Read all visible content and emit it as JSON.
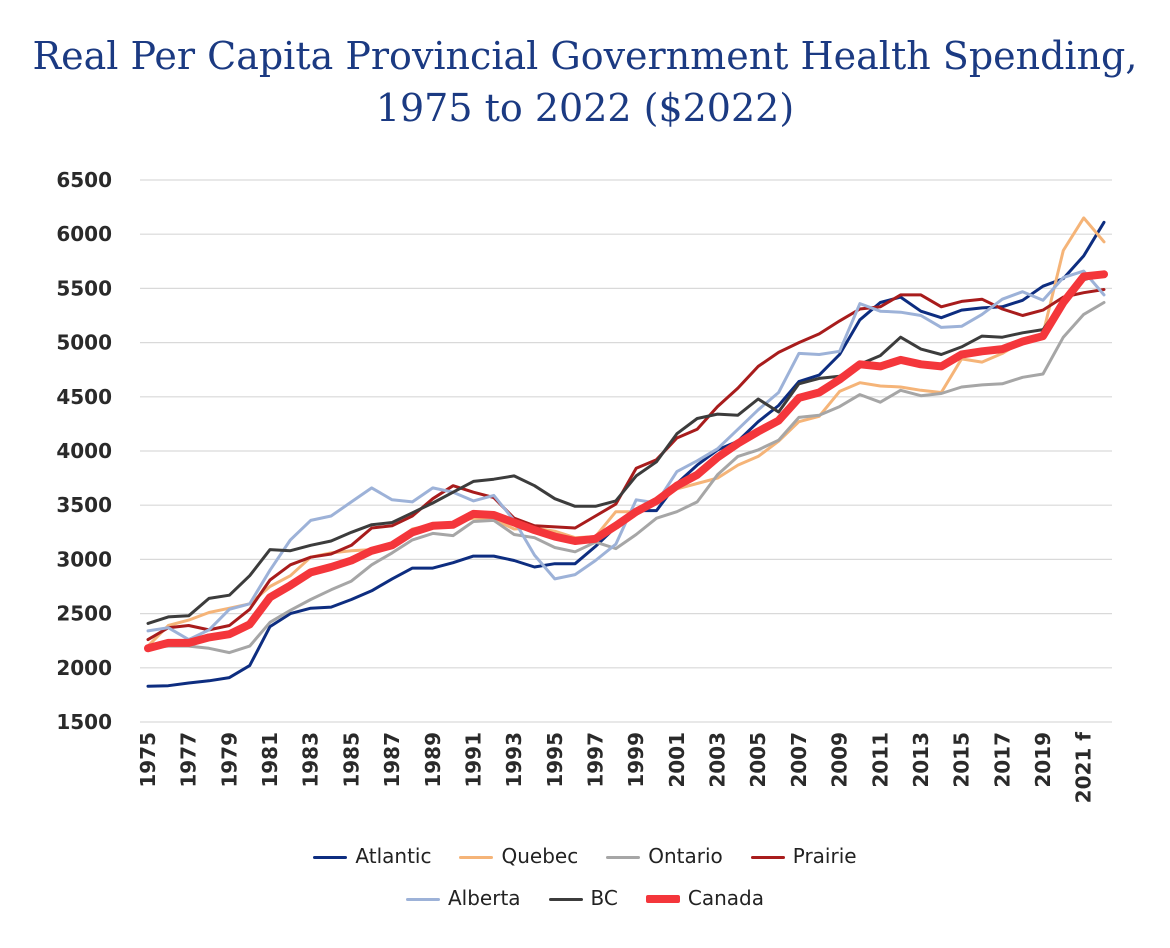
{
  "title_line1": "Real Per Capita Provincial Government Health Spending,",
  "title_line2": "1975 to 2022 ($2022)",
  "chart_data": {
    "type": "line",
    "title": "Real Per Capita Provincial Government Health Spending, 1975 to 2022 ($2022)",
    "xlabel": "",
    "ylabel": "",
    "ylim": [
      1500,
      6500
    ],
    "yticks": [
      1500,
      2000,
      2500,
      3000,
      3500,
      4000,
      4500,
      5000,
      5500,
      6000,
      6500
    ],
    "xticks": [
      "1975",
      "1977",
      "1979",
      "1981",
      "1983",
      "1985",
      "1987",
      "1989",
      "1991",
      "1993",
      "1995",
      "1997",
      "1999",
      "2001",
      "2003",
      "2005",
      "2007",
      "2009",
      "2011",
      "2013",
      "2015",
      "2017",
      "2019",
      "2021 f"
    ],
    "x": [
      "1975",
      "1976",
      "1977",
      "1978",
      "1979",
      "1980",
      "1981",
      "1982",
      "1983",
      "1984",
      "1985",
      "1986",
      "1987",
      "1988",
      "1989",
      "1990",
      "1991",
      "1992",
      "1993",
      "1994",
      "1995",
      "1996",
      "1997",
      "1998",
      "1999",
      "2000",
      "2001",
      "2002",
      "2003",
      "2004",
      "2005",
      "2006",
      "2007",
      "2008",
      "2009",
      "2010",
      "2011",
      "2012",
      "2013",
      "2014",
      "2015",
      "2016",
      "2017",
      "2018",
      "2019",
      "2020",
      "2021 f",
      "2022 f"
    ],
    "grid": true,
    "legend_position": "bottom",
    "series": [
      {
        "name": "Atlantic",
        "color": "#0d2d80",
        "width": 3,
        "values": [
          1830,
          1835,
          1860,
          1880,
          1910,
          2020,
          2380,
          2500,
          2550,
          2560,
          2630,
          2710,
          2820,
          2920,
          2920,
          2970,
          3030,
          3030,
          2990,
          2930,
          2960,
          2960,
          3120,
          3300,
          3450,
          3450,
          3700,
          3870,
          4010,
          4090,
          4270,
          4420,
          4640,
          4700,
          4890,
          5210,
          5370,
          5420,
          5290,
          5230,
          5300,
          5320,
          5330,
          5390,
          5520,
          5590,
          5800,
          6110
        ]
      },
      {
        "name": "Quebec",
        "color": "#f5b478",
        "width": 3,
        "values": [
          2200,
          2390,
          2440,
          2510,
          2550,
          2590,
          2750,
          2850,
          3020,
          3060,
          3080,
          3090,
          3130,
          3280,
          3320,
          3340,
          3380,
          3370,
          3280,
          3290,
          3260,
          3200,
          3210,
          3440,
          3440,
          3520,
          3650,
          3700,
          3750,
          3870,
          3950,
          4090,
          4270,
          4320,
          4550,
          4630,
          4600,
          4590,
          4560,
          4540,
          4850,
          4820,
          4900,
          5010,
          5080,
          5850,
          6150,
          5930
        ]
      },
      {
        "name": "Ontario",
        "color": "#a6a6a6",
        "width": 3,
        "values": [
          2190,
          2200,
          2200,
          2180,
          2140,
          2200,
          2420,
          2530,
          2630,
          2720,
          2800,
          2950,
          3060,
          3180,
          3240,
          3220,
          3350,
          3360,
          3230,
          3200,
          3110,
          3070,
          3160,
          3100,
          3230,
          3380,
          3440,
          3530,
          3780,
          3950,
          4010,
          4100,
          4310,
          4330,
          4410,
          4520,
          4450,
          4560,
          4510,
          4530,
          4590,
          4610,
          4620,
          4680,
          4710,
          5050,
          5260,
          5370
        ]
      },
      {
        "name": "Prairie",
        "color": "#a81c1c",
        "width": 3,
        "values": [
          2260,
          2370,
          2390,
          2350,
          2390,
          2540,
          2810,
          2950,
          3020,
          3050,
          3130,
          3290,
          3310,
          3400,
          3560,
          3680,
          3620,
          3570,
          3380,
          3310,
          3300,
          3290,
          3400,
          3510,
          3840,
          3920,
          4120,
          4200,
          4410,
          4580,
          4780,
          4910,
          5000,
          5080,
          5200,
          5310,
          5330,
          5440,
          5440,
          5330,
          5380,
          5400,
          5310,
          5250,
          5300,
          5420,
          5460,
          5490
        ]
      },
      {
        "name": "Alberta",
        "color": "#9db2d8",
        "width": 3,
        "values": [
          2340,
          2370,
          2260,
          2350,
          2540,
          2590,
          2900,
          3180,
          3360,
          3400,
          3530,
          3660,
          3550,
          3530,
          3660,
          3620,
          3540,
          3590,
          3360,
          3040,
          2820,
          2860,
          2990,
          3140,
          3550,
          3520,
          3810,
          3910,
          4020,
          4200,
          4380,
          4540,
          4900,
          4890,
          4920,
          5360,
          5290,
          5280,
          5250,
          5140,
          5150,
          5260,
          5400,
          5470,
          5390,
          5600,
          5660,
          5440
        ]
      },
      {
        "name": "BC",
        "color": "#3c3c3c",
        "width": 3,
        "values": [
          2410,
          2470,
          2480,
          2640,
          2670,
          2850,
          3090,
          3080,
          3130,
          3170,
          3250,
          3320,
          3340,
          3430,
          3520,
          3620,
          3720,
          3740,
          3770,
          3680,
          3560,
          3490,
          3490,
          3540,
          3770,
          3900,
          4160,
          4300,
          4340,
          4330,
          4480,
          4360,
          4620,
          4670,
          4690,
          4800,
          4880,
          5050,
          4940,
          4890,
          4960,
          5060,
          5050,
          5090,
          5120,
          5380,
          5580,
          5630
        ]
      },
      {
        "name": "Canada",
        "color": "#f4363b",
        "width": 8,
        "values": [
          2180,
          2230,
          2230,
          2280,
          2310,
          2400,
          2650,
          2760,
          2880,
          2930,
          2990,
          3080,
          3130,
          3250,
          3310,
          3320,
          3420,
          3410,
          3340,
          3270,
          3210,
          3170,
          3190,
          3310,
          3440,
          3540,
          3680,
          3780,
          3940,
          4070,
          4180,
          4280,
          4490,
          4540,
          4660,
          4800,
          4780,
          4840,
          4800,
          4780,
          4890,
          4920,
          4940,
          5010,
          5060,
          5370,
          5610,
          5630
        ]
      }
    ]
  }
}
